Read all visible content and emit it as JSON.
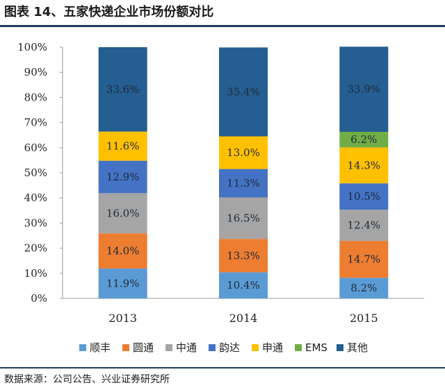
{
  "title": "图表 14、五家快递企业市场份额对比",
  "source": "数据来源：公司公告、兴业证券研究所",
  "chart_data": {
    "type": "bar",
    "stacked": true,
    "categories": [
      "2013",
      "2014",
      "2015"
    ],
    "ylim": [
      0,
      100
    ],
    "yticks": [
      "0%",
      "10%",
      "20%",
      "30%",
      "40%",
      "50%",
      "60%",
      "70%",
      "80%",
      "90%",
      "100%"
    ],
    "legend_position": "bottom",
    "series": [
      {
        "name": "顺丰",
        "color": "#5b9bd5",
        "values": [
          11.9,
          10.4,
          8.2
        ],
        "labels": [
          "11.9%",
          "10.4%",
          "8.2%"
        ]
      },
      {
        "name": "圆通",
        "color": "#ed7d31",
        "values": [
          14.0,
          13.3,
          14.7
        ],
        "labels": [
          "14.0%",
          "13.3%",
          "14.7%"
        ]
      },
      {
        "name": "中通",
        "color": "#a5a5a5",
        "values": [
          16.0,
          16.5,
          12.4
        ],
        "labels": [
          "16.0%",
          "16.5%",
          "12.4%"
        ]
      },
      {
        "name": "韵达",
        "color": "#4472c4",
        "values": [
          12.9,
          11.3,
          10.5
        ],
        "labels": [
          "12.9%",
          "11.3%",
          "10.5%"
        ]
      },
      {
        "name": "申通",
        "color": "#ffc000",
        "values": [
          11.6,
          13.0,
          14.3
        ],
        "labels": [
          "11.6%",
          "13.0%",
          "14.3%"
        ]
      },
      {
        "name": "EMS",
        "color": "#70ad47",
        "values": [
          0,
          0,
          6.2
        ],
        "labels": [
          "",
          "",
          "6.2%"
        ]
      },
      {
        "name": "其他",
        "color": "#255e91",
        "values": [
          33.6,
          35.4,
          33.9
        ],
        "labels": [
          "33.6%",
          "35.4%",
          "33.9%"
        ]
      }
    ]
  }
}
